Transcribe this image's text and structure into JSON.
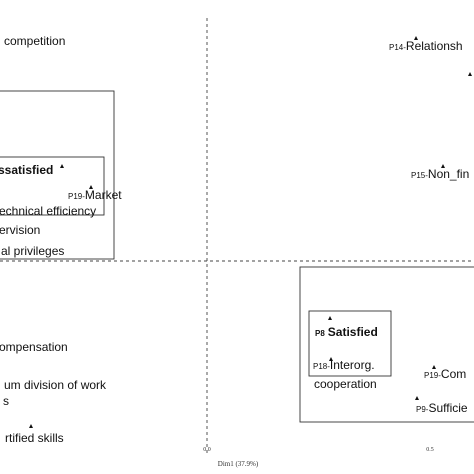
{
  "chart_data": {
    "type": "scatter",
    "xlabel": "Dim1 (37.9%)",
    "ylabel": "",
    "x_ticks": [
      "0.0",
      "0.5"
    ],
    "grid": false,
    "reference_lines": [
      "x=0",
      "y=0"
    ],
    "labels": [
      {
        "prefix": "",
        "text": "competition"
      },
      {
        "prefix": "P14-",
        "text": "Relationsh"
      },
      {
        "prefix": "",
        "text": "ssatisfied"
      },
      {
        "prefix": "P19-",
        "text": "Market"
      },
      {
        "prefix": "",
        "text": "echnical efficiency"
      },
      {
        "prefix": "",
        "text": "ervision"
      },
      {
        "prefix": "P15-",
        "text": "Non_fin"
      },
      {
        "prefix": "",
        "text": "al privileges"
      },
      {
        "prefix": "P8",
        "text": "Satisfied"
      },
      {
        "prefix": "",
        "text": "ompensation"
      },
      {
        "prefix": "P18-",
        "text": "Interorg."
      },
      {
        "prefix": "",
        "text": "cooperation"
      },
      {
        "prefix": "",
        "text": "um division of work"
      },
      {
        "prefix": "P19-",
        "text": "Com"
      },
      {
        "prefix": "",
        "text": "s"
      },
      {
        "prefix": "P9-",
        "text": "Sufficie"
      },
      {
        "prefix": "",
        "text": "rtified skills"
      }
    ]
  }
}
